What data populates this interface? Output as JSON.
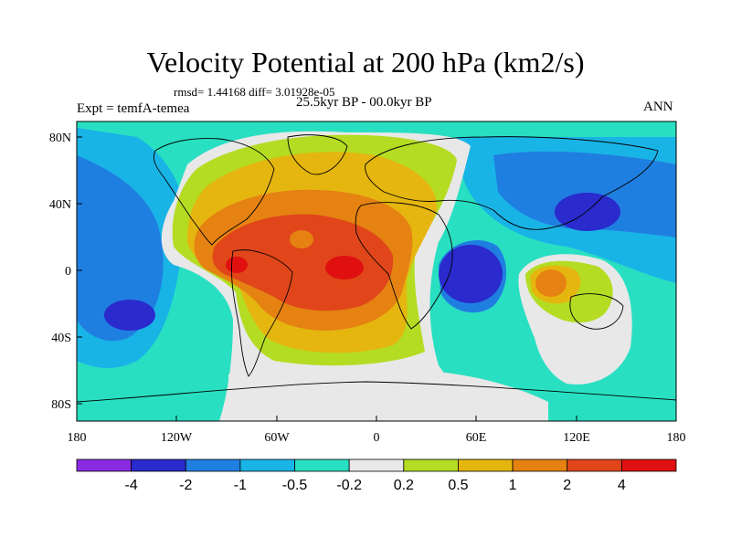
{
  "title": "Velocity Potential at 200 hPa (km2/s)",
  "stats_line": "rmsd= 1.44168 diff= 3.01928e-05",
  "expt_label": "Expt = temfA-temea",
  "period_label": "25.5kyr BP - 00.0kyr BP",
  "season_label": "ANN",
  "map": {
    "x_ticks": [
      "180",
      "120W",
      "60W",
      "0",
      "60E",
      "120E",
      "180"
    ],
    "y_ticks": [
      "80N",
      "40N",
      "0",
      "40S",
      "80S"
    ]
  },
  "colorbar": {
    "colors": [
      "#8a2be2",
      "#2a2acd",
      "#1f7fe0",
      "#19b4e6",
      "#29dfc2",
      "#e8e8e8",
      "#b4dc23",
      "#e5b60f",
      "#e58212",
      "#e0461a",
      "#e01010"
    ],
    "labels": [
      "-4",
      "-2",
      "-1",
      "-0.5",
      "-0.2",
      "0.2",
      "0.5",
      "1",
      "2",
      "4"
    ]
  },
  "colors": {
    "very_neg": "#2a2acd",
    "neg": "#1f7fe0",
    "mid_neg": "#19b4e6",
    "weak_neg": "#29dfc2",
    "neutral": "#e8e8e8",
    "weak_pos": "#b4dc23",
    "mid_pos": "#e5b60f",
    "pos": "#e58212",
    "strong_pos": "#e0461a",
    "max_pos": "#e01010"
  }
}
